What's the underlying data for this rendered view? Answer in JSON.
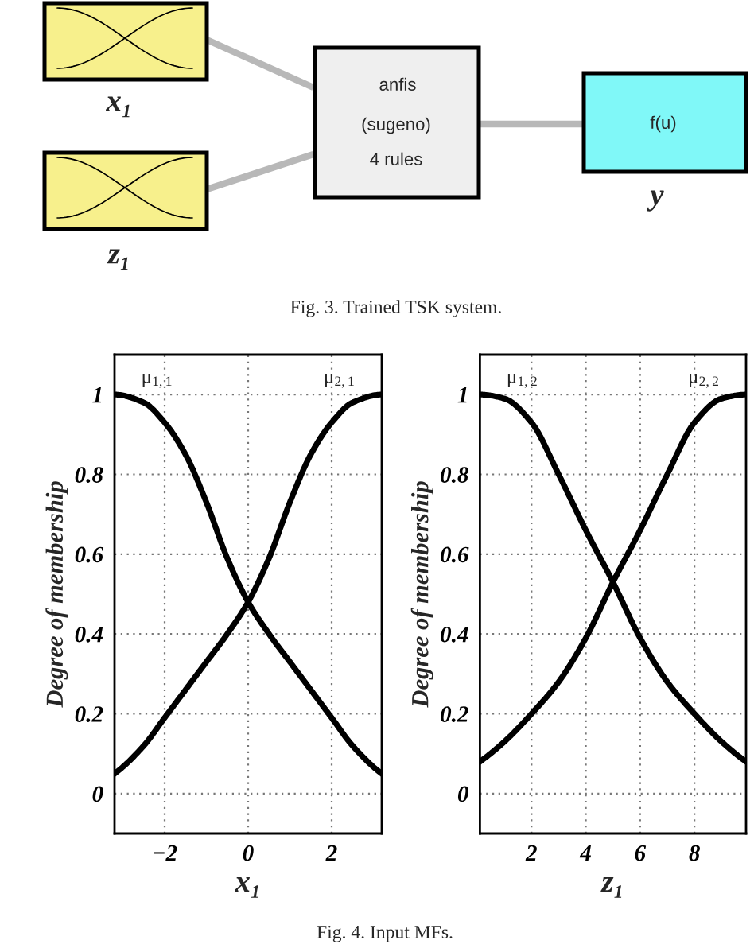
{
  "chart_data": [
    {
      "type": "other",
      "annotations": [
        "anfis",
        "(sugeno)",
        "4 rules",
        "f(u)",
        "x₁",
        "z₁",
        "y",
        "Fig. 3. Trained TSK system."
      ]
    },
    {
      "type": "line",
      "xlabel": "x₁",
      "ylabel": "Degree of membership",
      "x": [
        -3.2,
        -2.5,
        -2,
        -1.5,
        -1,
        -0.5,
        0,
        0.5,
        1,
        1.5,
        2,
        2.5,
        3.2
      ],
      "series": [
        {
          "name": "μ$_{1,1}$",
          "color": "#000000",
          "values": [
            1,
            0.98,
            0.93,
            0.85,
            0.73,
            0.59,
            0.48,
            0.4,
            0.33,
            0.26,
            0.19,
            0.12,
            0.05
          ]
        },
        {
          "name": "μ$_{2,1}$",
          "color": "#000000",
          "values": [
            0.05,
            0.12,
            0.19,
            0.26,
            0.33,
            0.4,
            0.48,
            0.59,
            0.73,
            0.85,
            0.93,
            0.98,
            1
          ]
        }
      ],
      "xlim": [
        -3.2,
        3.2
      ],
      "ylim": [
        -0.1,
        1.1
      ],
      "xticks": [
        -2,
        0,
        2
      ],
      "yticks": [
        0,
        0.2,
        0.4,
        0.6,
        0.8,
        1
      ],
      "grid": true,
      "annotations": [
        "Fig. 4. Input MFs."
      ]
    },
    {
      "type": "line",
      "xlabel": "z₁",
      "ylabel": "Degree of membership",
      "x": [
        0.1,
        1,
        2,
        3,
        4,
        5,
        6,
        7,
        8,
        9,
        9.9
      ],
      "series": [
        {
          "name": "μ$_{1,2}$",
          "color": "#000000",
          "values": [
            1,
            0.99,
            0.93,
            0.8,
            0.66,
            0.53,
            0.39,
            0.28,
            0.2,
            0.13,
            0.08
          ]
        },
        {
          "name": "μ$_{2,2}$",
          "color": "#000000",
          "values": [
            0.08,
            0.13,
            0.2,
            0.28,
            0.39,
            0.53,
            0.66,
            0.8,
            0.93,
            0.99,
            1
          ]
        }
      ],
      "xlim": [
        0.1,
        9.9
      ],
      "ylim": [
        -0.1,
        1.1
      ],
      "xticks": [
        2,
        4,
        6,
        8
      ],
      "yticks": [
        0,
        0.2,
        0.4,
        0.6,
        0.8,
        1
      ],
      "grid": true
    }
  ]
}
